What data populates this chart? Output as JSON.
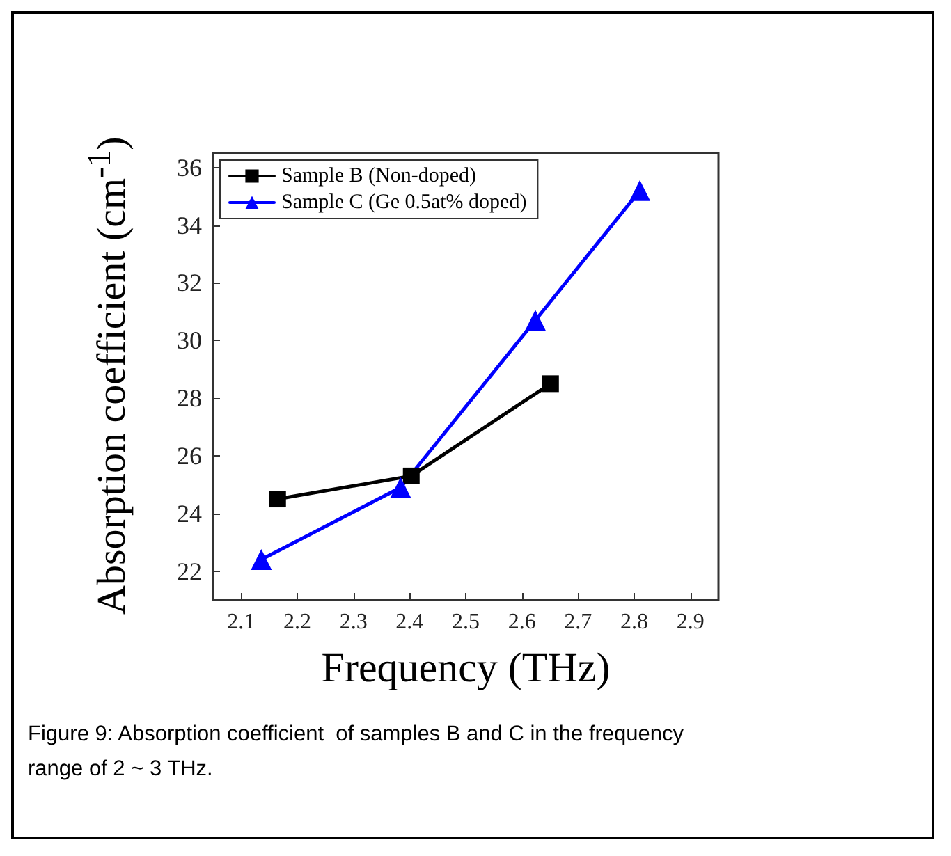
{
  "chart_data": {
    "type": "line",
    "xlabel": "Frequency (THz)",
    "ylabel": "Absorption coefficient (cm$^{-1}$)",
    "series": [
      {
        "name": "Sample B (Non-doped)",
        "color": "#000000",
        "marker": "square",
        "x": [
          2.165,
          2.403,
          2.651
        ],
        "values": [
          24.5,
          25.3,
          28.5
        ]
      },
      {
        "name": "Sample C (Ge 0.5at% doped)",
        "color": "#0000ff",
        "marker": "triangle",
        "x": [
          2.136,
          2.384,
          2.624,
          2.81
        ],
        "values": [
          22.4,
          24.9,
          30.7,
          35.2
        ]
      }
    ],
    "xlim": [
      2.05,
      2.95
    ],
    "xticks": [
      2.1,
      2.2,
      2.3,
      2.4,
      2.5,
      2.6,
      2.7,
      2.8,
      2.9
    ],
    "ylim": [
      21,
      36.5
    ],
    "yticks": [
      22,
      24,
      26,
      28,
      30,
      32,
      34,
      36
    ],
    "grid": false,
    "legend": "top left",
    "annotations": [
      "Figure 9: Absorption coefficient  of samples B and C in the frequency range of 2 ~ 3 THz."
    ]
  }
}
